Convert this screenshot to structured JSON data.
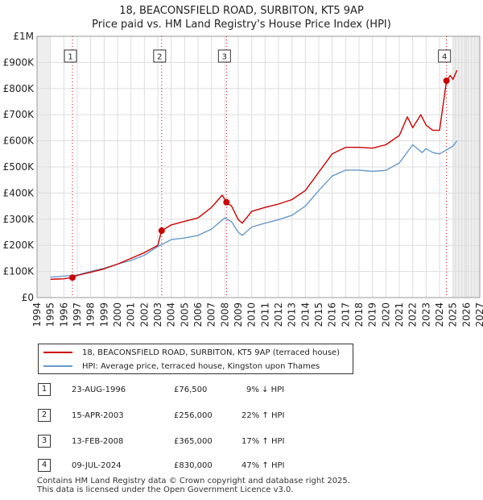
{
  "title_line1": "18, BEACONSFIELD ROAD, SURBITON, KT5 9AP",
  "title_line2": "Price paid vs. HM Land Registry's House Price Index (HPI)",
  "legend": {
    "series1": "18, BEACONSFIELD ROAD, SURBITON, KT5 9AP (terraced house)",
    "series2": "HPI: Average price, terraced house, Kingston upon Thames"
  },
  "sales": [
    {
      "num": "1",
      "date": "23-AUG-1996",
      "price": "£76,500",
      "delta": "9% ↓ HPI"
    },
    {
      "num": "2",
      "date": "15-APR-2003",
      "price": "£256,000",
      "delta": "22% ↑ HPI"
    },
    {
      "num": "3",
      "date": "13-FEB-2008",
      "price": "£365,000",
      "delta": "17% ↑ HPI"
    },
    {
      "num": "4",
      "date": "09-JUL-2024",
      "price": "£830,000",
      "delta": "47% ↑ HPI"
    }
  ],
  "footer": {
    "line1": "Contains HM Land Registry data © Crown copyright and database right 2025.",
    "line2": "This data is licensed under the Open Government Licence v3.0."
  },
  "colors": {
    "property": "#cc0000",
    "hpi": "#6699cc",
    "marker": "#cc0000"
  },
  "chart_data": {
    "type": "line",
    "title": "18, BEACONSFIELD ROAD, SURBITON, KT5 9AP",
    "subtitle": "Price paid vs. HM Land Registry's House Price Index (HPI)",
    "xlabel": "",
    "ylabel": "",
    "xlim": [
      1994,
      2027
    ],
    "ylim": [
      0,
      1000000
    ],
    "x_ticks": [
      1994,
      1995,
      1996,
      1997,
      1998,
      1999,
      2000,
      2001,
      2002,
      2003,
      2004,
      2005,
      2006,
      2007,
      2008,
      2009,
      2010,
      2011,
      2012,
      2013,
      2014,
      2015,
      2016,
      2017,
      2018,
      2019,
      2020,
      2021,
      2022,
      2023,
      2024,
      2025,
      2026,
      2027
    ],
    "y_ticks": [
      {
        "value": 0,
        "label": "£0"
      },
      {
        "value": 100000,
        "label": "£100K"
      },
      {
        "value": 200000,
        "label": "£200K"
      },
      {
        "value": 300000,
        "label": "£300K"
      },
      {
        "value": 400000,
        "label": "£400K"
      },
      {
        "value": 500000,
        "label": "£500K"
      },
      {
        "value": 600000,
        "label": "£600K"
      },
      {
        "value": 700000,
        "label": "£700K"
      },
      {
        "value": 800000,
        "label": "£800K"
      },
      {
        "value": 900000,
        "label": "£900K"
      },
      {
        "value": 1000000,
        "label": "£1M"
      }
    ],
    "grid": true,
    "shaded_ranges": [
      [
        1994,
        1995
      ],
      [
        2025,
        2027
      ]
    ],
    "series": [
      {
        "name": "18, BEACONSFIELD ROAD, SURBITON, KT5 9AP (terraced house)",
        "x": [
          1995,
          1995.5,
          1996,
          1996.64,
          1997,
          1998,
          1999,
          2000,
          2001,
          2002,
          2003,
          2003.29,
          2004,
          2005,
          2006,
          2007,
          2007.8,
          2008.12,
          2008.5,
          2009,
          2009.3,
          2010,
          2011,
          2012,
          2013,
          2014,
          2015,
          2016,
          2017,
          2018,
          2019,
          2020,
          2021,
          2021.6,
          2022,
          2022.6,
          2023,
          2023.5,
          2024,
          2024.52,
          2024.8,
          2025,
          2025.3
        ],
        "y": [
          70000,
          71000,
          72000,
          76500,
          85000,
          97000,
          110000,
          128000,
          150000,
          172000,
          200000,
          256000,
          278000,
          292000,
          305000,
          345000,
          392000,
          365000,
          350000,
          298000,
          285000,
          330000,
          345000,
          358000,
          375000,
          410000,
          480000,
          550000,
          575000,
          575000,
          572000,
          585000,
          620000,
          692000,
          650000,
          700000,
          660000,
          640000,
          640000,
          830000,
          850000,
          835000,
          870000
        ]
      },
      {
        "name": "HPI: Average price, terraced house, Kingston upon Thames",
        "x": [
          1995,
          1996,
          1997,
          1998,
          1999,
          2000,
          2001,
          2002,
          2003,
          2004,
          2005,
          2006,
          2007,
          2008,
          2008.5,
          2009,
          2009.3,
          2010,
          2011,
          2012,
          2013,
          2014,
          2015,
          2016,
          2017,
          2018,
          2019,
          2020,
          2021,
          2022,
          2022.7,
          2023,
          2023.5,
          2024,
          2024.52,
          2025,
          2025.3
        ],
        "y": [
          78000,
          82000,
          86000,
          100000,
          112000,
          128000,
          142000,
          162000,
          195000,
          222000,
          228000,
          238000,
          262000,
          305000,
          290000,
          250000,
          238000,
          270000,
          285000,
          298000,
          315000,
          350000,
          410000,
          465000,
          488000,
          488000,
          483000,
          487000,
          515000,
          585000,
          555000,
          570000,
          555000,
          550000,
          565000,
          580000,
          600000
        ]
      }
    ],
    "markers": [
      {
        "label": "1",
        "x": 1996.64,
        "y": 76500
      },
      {
        "label": "2",
        "x": 2003.29,
        "y": 256000
      },
      {
        "label": "3",
        "x": 2008.12,
        "y": 365000
      },
      {
        "label": "4",
        "x": 2024.52,
        "y": 830000
      }
    ],
    "legend_position": "bottom"
  }
}
